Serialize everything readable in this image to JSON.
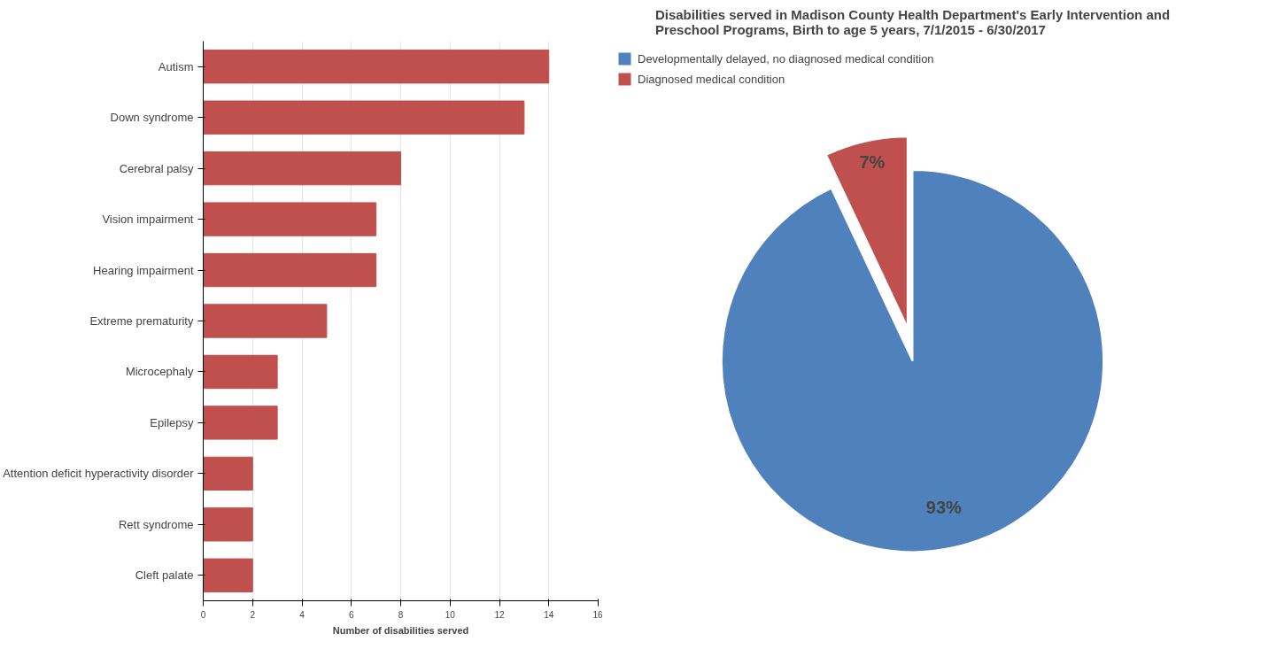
{
  "chart_data": [
    {
      "type": "pie",
      "title": "Disabilities served in Madison County Health Department's Early Intervention and Preschool Programs, Birth to age 5 years, 7/1/2015 - 6/30/2017",
      "categories": [
        "Developmentally delayed, no diagnosed medical condition",
        "Diagnosed medical condition"
      ],
      "values": [
        93,
        7
      ],
      "value_labels": [
        "93%",
        "7%"
      ],
      "colors": [
        "#4f81bd",
        "#c0504d"
      ],
      "legend": "top left"
    },
    {
      "type": "bar",
      "orientation": "horizontal",
      "xlabel": "Number of disabilities served",
      "categories": [
        "Autism",
        "Down syndrome",
        "Cerebral palsy",
        "Vision impairment",
        "Hearing impairment",
        "Extreme prematurity",
        "Microcephaly",
        "Epilepsy",
        "Attention deficit hyperactivity disorder",
        "Rett syndrome",
        "Cleft palate"
      ],
      "values": [
        14,
        13,
        8,
        7,
        7,
        5,
        3,
        3,
        2,
        2,
        2
      ],
      "color": "#c0504d",
      "xlim": [
        0,
        16
      ],
      "xticks": [
        0,
        2,
        4,
        6,
        8,
        10,
        12,
        14,
        16
      ],
      "grid": "x"
    }
  ]
}
